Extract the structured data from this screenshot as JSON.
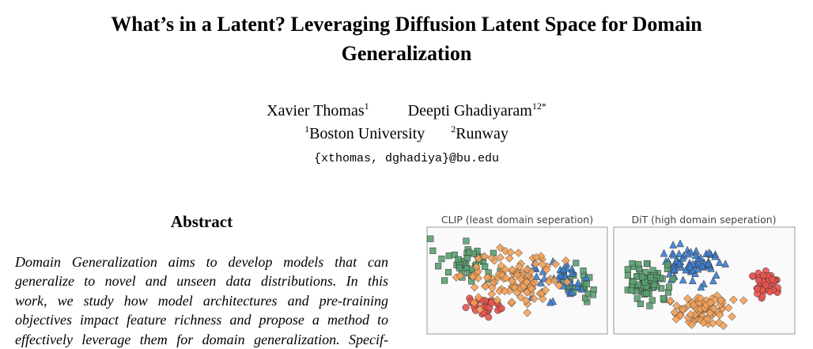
{
  "header": {
    "title": "What’s in a Latent? Leveraging Diffusion Latent Space for Domain Generalization",
    "authors": [
      {
        "name": "Xavier Thomas",
        "sup": "1"
      },
      {
        "name": "Deepti Ghadiyaram",
        "sup": "12*"
      }
    ],
    "affiliations": [
      {
        "sup": "1",
        "name": "Boston University"
      },
      {
        "sup": "2",
        "name": "Runway"
      }
    ],
    "email": "{xthomas, dghadiya}@bu.edu"
  },
  "abstract": {
    "heading": "Abstract",
    "lines": [
      "Domain Generalization aims to develop models that can",
      "generalize to novel and unseen data distributions. In this",
      "work, we study how model architectures and pre-training",
      "objectives impact feature richness and propose a method to",
      "effectively leverage them for domain generalization. Specif-"
    ]
  },
  "figure": {
    "panels": [
      {
        "title": "CLIP (least domain seperation)"
      },
      {
        "title": "DiT (high domain seperation)"
      }
    ]
  }
}
